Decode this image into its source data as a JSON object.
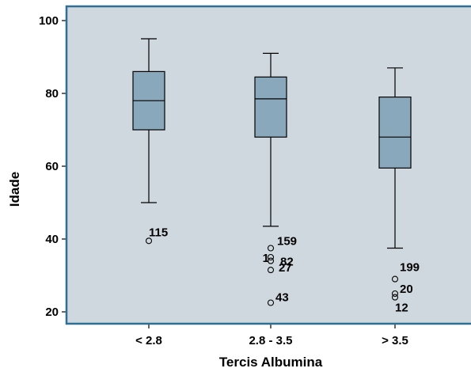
{
  "colors": {
    "plot_background": "#cfd7df",
    "plot_border": "#2f6f95",
    "box_fill": "#8aa8bb",
    "line": "#000000"
  },
  "chart_data": {
    "type": "boxplot",
    "xlabel": "Tercis Albumina",
    "ylabel": "Idade",
    "ylim": [
      17,
      104
    ],
    "yticks": [
      20,
      40,
      60,
      80,
      100
    ],
    "grid": false,
    "categories": [
      "< 2.8",
      "2.8 - 3.5",
      "> 3.5"
    ],
    "boxes": [
      {
        "category": "< 2.8",
        "whisker_low": 50,
        "q1": 70,
        "median": 78,
        "q3": 86,
        "whisker_high": 95,
        "outliers": [
          {
            "value": 39.5,
            "label": "115"
          }
        ]
      },
      {
        "category": "2.8 - 3.5",
        "whisker_low": 43.5,
        "q1": 68,
        "median": 78.5,
        "q3": 84.5,
        "whisker_high": 91,
        "outliers": [
          {
            "value": 37.5,
            "label": "159"
          },
          {
            "value": 35,
            "label": "1"
          },
          {
            "value": 34,
            "label": "82"
          },
          {
            "value": 31.5,
            "label": "27"
          },
          {
            "value": 22.5,
            "label": "43"
          }
        ]
      },
      {
        "category": "> 3.5",
        "whisker_low": 37.5,
        "q1": 59.5,
        "median": 68,
        "q3": 79,
        "whisker_high": 87,
        "outliers": [
          {
            "value": 29,
            "label": "199"
          },
          {
            "value": 25,
            "label": "20"
          },
          {
            "value": 24,
            "label": "12"
          }
        ]
      }
    ]
  }
}
